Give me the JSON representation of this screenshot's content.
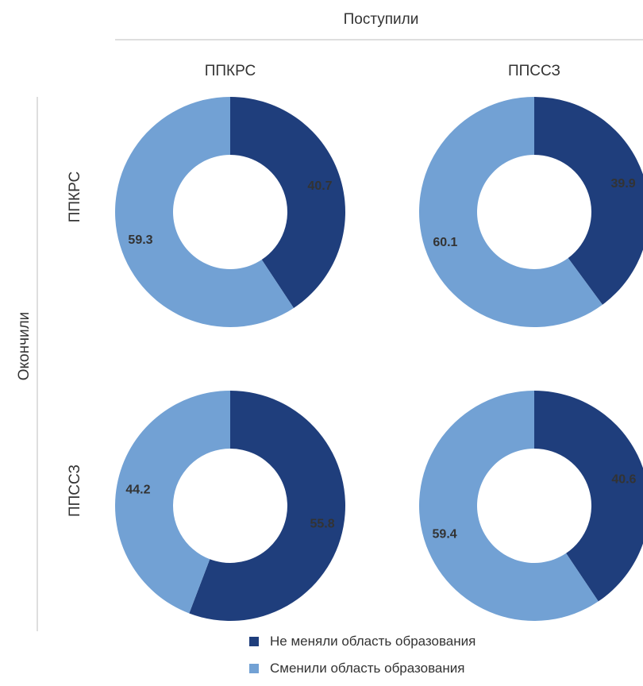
{
  "chart_data": {
    "type": "pie",
    "column_axis_label": "Поступили",
    "row_axis_label": "Окончили",
    "columns": [
      "ППКРС",
      "ППССЗ"
    ],
    "rows": [
      "ППКРС",
      "ППССЗ"
    ],
    "series": [
      {
        "name": "Не меняли область образования",
        "color": "#1f3e7c"
      },
      {
        "name": "Сменили область образования",
        "color": "#72a1d4"
      }
    ],
    "panels": [
      {
        "row": 0,
        "col": 0,
        "values": [
          40.7,
          59.3
        ]
      },
      {
        "row": 0,
        "col": 1,
        "values": [
          39.9,
          60.1
        ]
      },
      {
        "row": 1,
        "col": 0,
        "values": [
          55.8,
          44.2
        ]
      },
      {
        "row": 1,
        "col": 1,
        "values": [
          40.6,
          59.4
        ]
      }
    ],
    "legend": "bottom"
  }
}
